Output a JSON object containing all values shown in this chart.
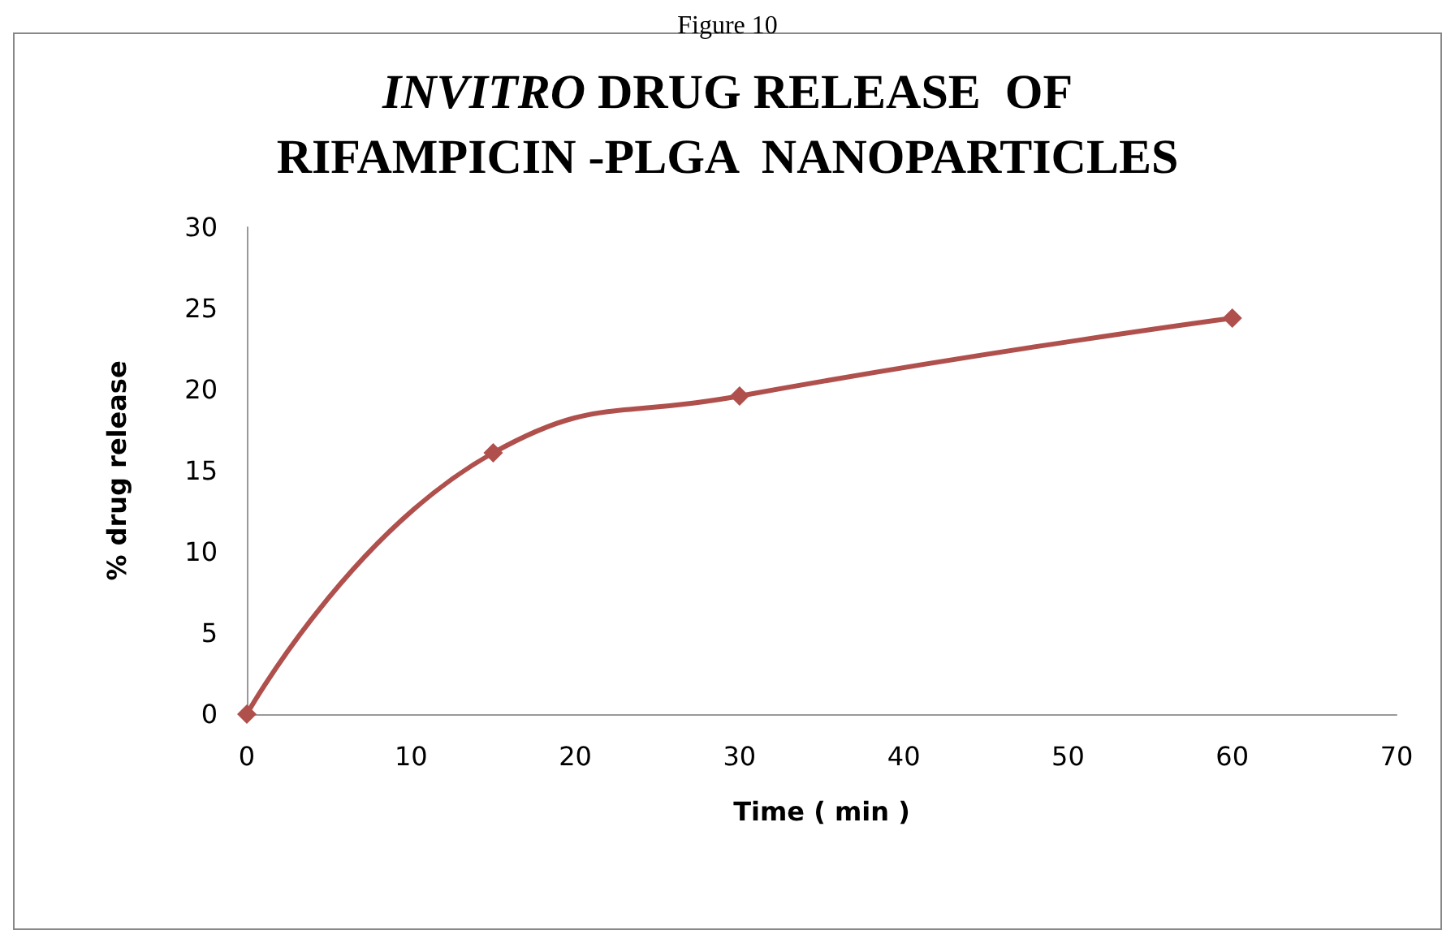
{
  "chart_data": {
    "type": "line",
    "title": "INVITRO DRUG RELEASE  OF\nRIFAMPICIN -PLGA  NANOPARTICLES",
    "annotations": [
      "Figure 10"
    ],
    "xlabel": "Time ( min )",
    "ylabel": "% drug release",
    "x": [
      0,
      15,
      30,
      60
    ],
    "series": [
      {
        "color": "#b0504d",
        "values": [
          0,
          16.1,
          19.6,
          24.4
        ]
      }
    ],
    "xlim": [
      0,
      70
    ],
    "xticks": [
      0,
      10,
      20,
      30,
      40,
      50,
      60,
      70
    ],
    "ylim": [
      0,
      30
    ],
    "yticks": [
      0,
      5,
      10,
      15,
      20,
      25,
      30
    ],
    "marker": "diamond",
    "line_style": "solid"
  }
}
